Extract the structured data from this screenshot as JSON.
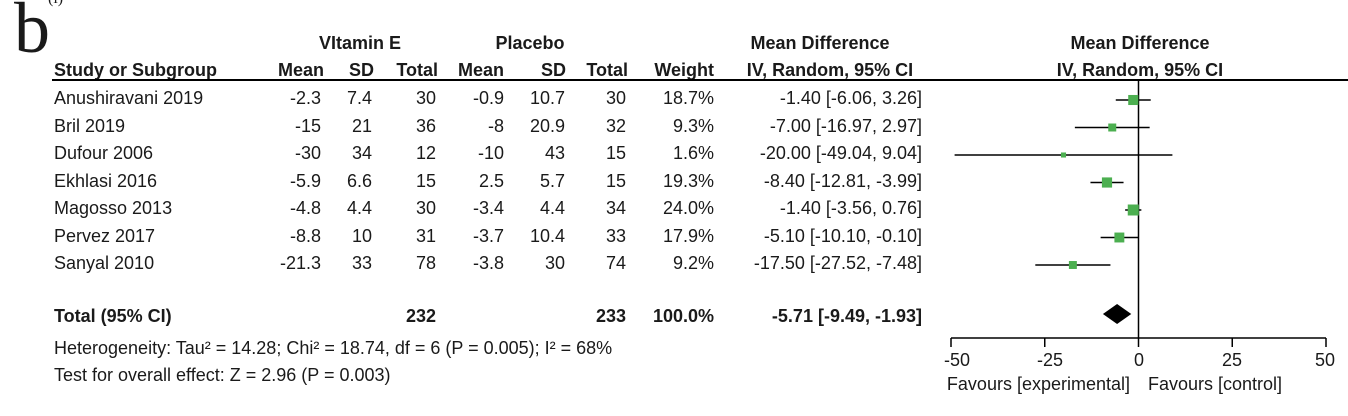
{
  "panel_label": "b",
  "corner_label": "(i)",
  "headers": {
    "group1": "VItamin E",
    "group2": "Placebo",
    "md_left_title": "Mean Difference",
    "md_left_sub": "IV, Random, 95% CI",
    "md_right_title": "Mean Difference",
    "md_right_sub": "IV, Random, 95% CI",
    "study": "Study or Subgroup",
    "mean1": "Mean",
    "sd1": "SD",
    "total1": "Total",
    "mean2": "Mean",
    "sd2": "SD",
    "total2": "Total",
    "weight": "Weight"
  },
  "rows": [
    {
      "study": "Anushiravani 2019",
      "mean1": "-2.3",
      "sd1": "7.4",
      "total1": "30",
      "mean2": "-0.9",
      "sd2": "10.7",
      "total2": "30",
      "weight": "18.7%",
      "ci": "-1.40 [-6.06, 3.26]"
    },
    {
      "study": "Bril 2019",
      "mean1": "-15",
      "sd1": "21",
      "total1": "36",
      "mean2": "-8",
      "sd2": "20.9",
      "total2": "32",
      "weight": "9.3%",
      "ci": "-7.00 [-16.97, 2.97]"
    },
    {
      "study": "Dufour 2006",
      "mean1": "-30",
      "sd1": "34",
      "total1": "12",
      "mean2": "-10",
      "sd2": "43",
      "total2": "15",
      "weight": "1.6%",
      "ci": "-20.00 [-49.04, 9.04]"
    },
    {
      "study": "Ekhlasi 2016",
      "mean1": "-5.9",
      "sd1": "6.6",
      "total1": "15",
      "mean2": "2.5",
      "sd2": "5.7",
      "total2": "15",
      "weight": "19.3%",
      "ci": "-8.40 [-12.81, -3.99]"
    },
    {
      "study": "Magosso 2013",
      "mean1": "-4.8",
      "sd1": "4.4",
      "total1": "30",
      "mean2": "-3.4",
      "sd2": "4.4",
      "total2": "34",
      "weight": "24.0%",
      "ci": "-1.40 [-3.56, 0.76]"
    },
    {
      "study": "Pervez 2017",
      "mean1": "-8.8",
      "sd1": "10",
      "total1": "31",
      "mean2": "-3.7",
      "sd2": "10.4",
      "total2": "33",
      "weight": "17.9%",
      "ci": "-5.10 [-10.10, -0.10]"
    },
    {
      "study": "Sanyal 2010",
      "mean1": "-21.3",
      "sd1": "33",
      "total1": "78",
      "mean2": "-3.8",
      "sd2": "30",
      "total2": "74",
      "weight": "9.2%",
      "ci": "-17.50 [-27.52, -7.48]"
    }
  ],
  "total_row": {
    "label": "Total (95% CI)",
    "total1": "232",
    "total2": "233",
    "weight": "100.0%",
    "ci": "-5.71 [-9.49, -1.93]"
  },
  "heterogeneity": "Heterogeneity: Tau² = 14.28; Chi² = 18.74, df = 6 (P = 0.005); I² = 68%",
  "overall_effect": "Test for overall effect: Z = 2.96 (P = 0.003)",
  "axis": {
    "ticks": [
      "-50",
      "-25",
      "0",
      "25",
      "50"
    ]
  },
  "favours_left": "Favours [experimental]",
  "favours_right": "Favours [control]",
  "colors": {
    "study_marker": "#4caf50",
    "pooled_diamond": "#000000",
    "line": "#000000"
  },
  "chart_data": {
    "type": "scatter",
    "title": "Mean Difference",
    "subtitle": "IV, Random, 95% CI",
    "xlim": [
      -50,
      50
    ],
    "xticks": [
      -50,
      -25,
      0,
      25,
      50
    ],
    "reference_line": 0,
    "categories": [
      "Anushiravani 2019",
      "Bril 2019",
      "Dufour 2006",
      "Ekhlasi 2016",
      "Magosso 2013",
      "Pervez 2017",
      "Sanyal 2010"
    ],
    "estimates": [
      -1.4,
      -7.0,
      -20.0,
      -8.4,
      -1.4,
      -5.1,
      -17.5
    ],
    "ci_lower": [
      -6.06,
      -16.97,
      -49.04,
      -12.81,
      -3.56,
      -10.1,
      -27.52
    ],
    "ci_upper": [
      3.26,
      2.97,
      9.04,
      -3.99,
      0.76,
      -0.1,
      -7.48
    ],
    "weights": [
      18.7,
      9.3,
      1.6,
      19.3,
      24.0,
      17.9,
      9.2
    ],
    "pooled": {
      "estimate": -5.71,
      "ci_lower": -9.49,
      "ci_upper": -1.93
    },
    "favours_left": "Favours [experimental]",
    "favours_right": "Favours [control]"
  }
}
